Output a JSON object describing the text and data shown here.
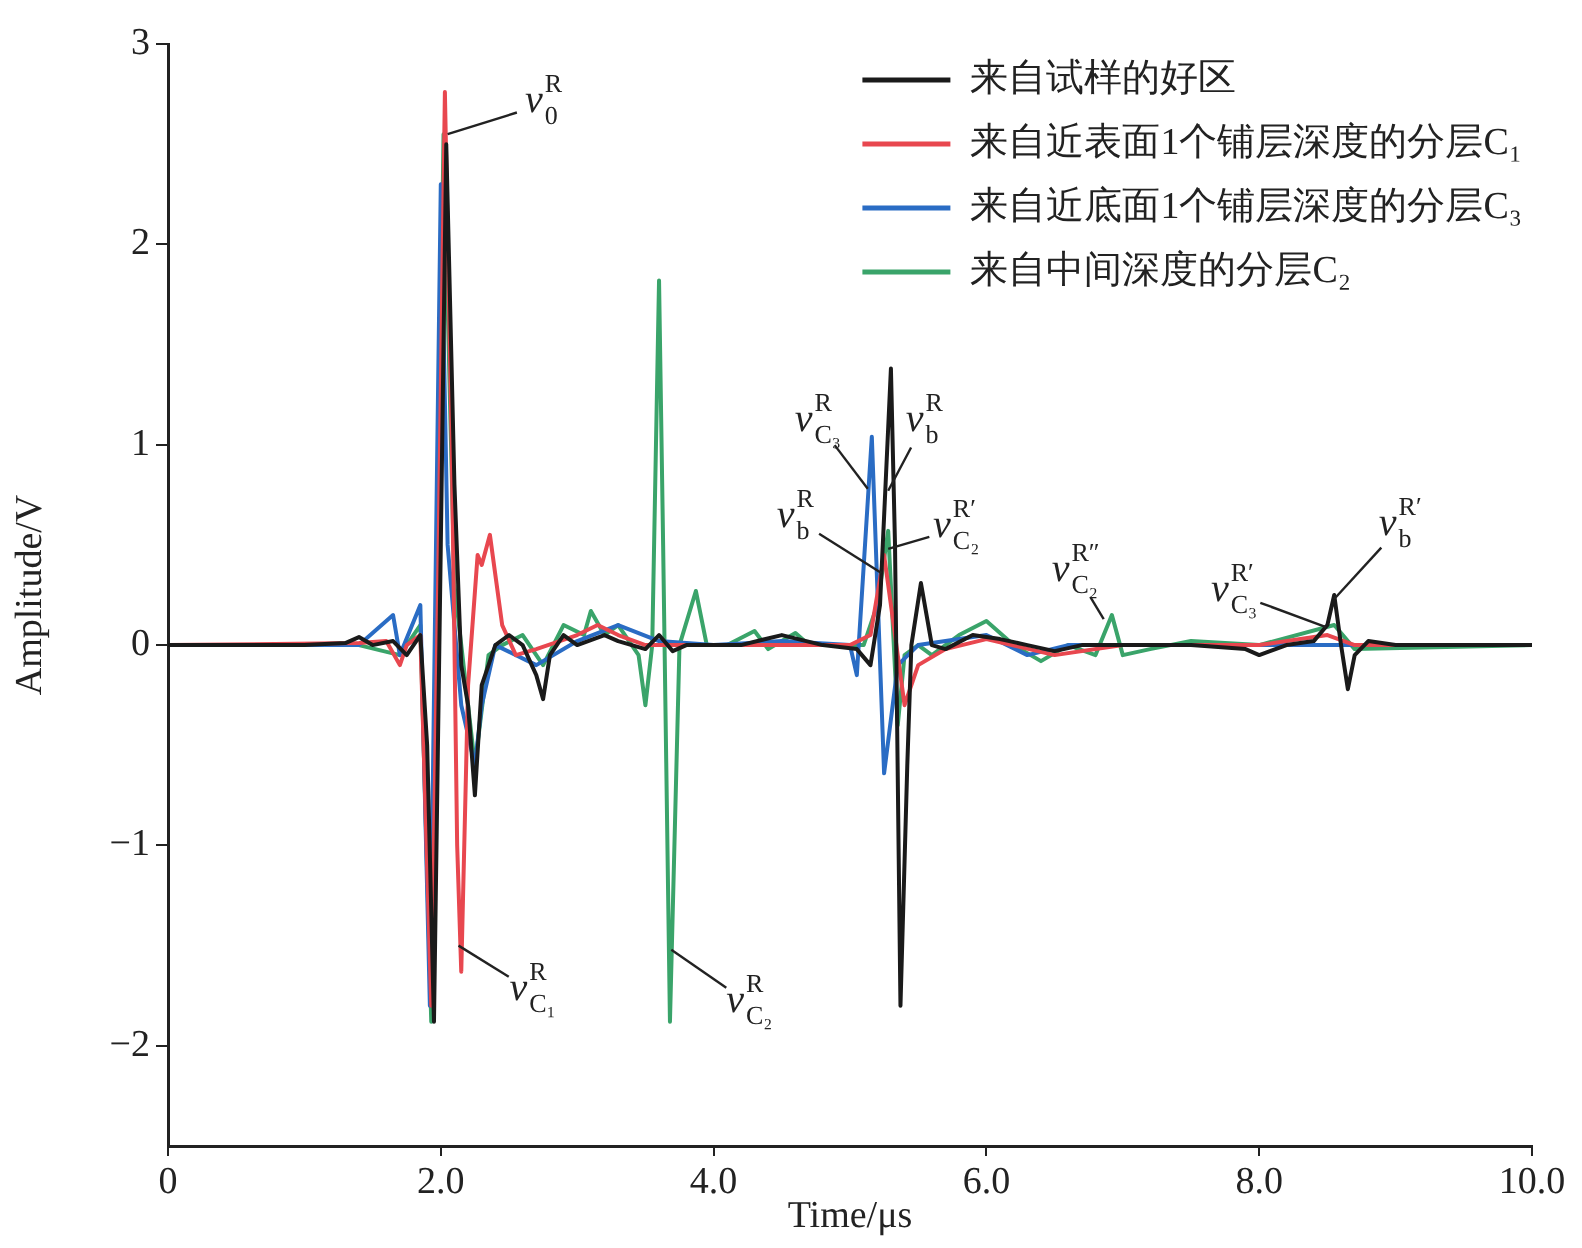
{
  "chart_data": {
    "type": "line",
    "xlabel": "Time/μs",
    "ylabel": "Amplitude/V",
    "xlim": [
      0,
      10
    ],
    "ylim": [
      -2.5,
      3
    ],
    "xticks": [
      0,
      {
        "value": 2,
        "label": "2.0"
      },
      {
        "value": 4,
        "label": "4.0"
      },
      {
        "value": 6,
        "label": "6.0"
      },
      {
        "value": 8,
        "label": "8.0"
      },
      {
        "value": 10,
        "label": "10.0"
      }
    ],
    "yticks": [
      -2,
      -1,
      0,
      1,
      2,
      3
    ],
    "grid": false,
    "legend": "top right",
    "marker": "none",
    "line_style": "solid",
    "series": [
      {
        "name": "来自试样的好区",
        "color": "#1a1a1a",
        "x": [
          0,
          1,
          1.3,
          1.4,
          1.5,
          1.65,
          1.75,
          1.85,
          1.9,
          1.95,
          2,
          2.04,
          2.1,
          2.15,
          2.2,
          2.25,
          2.3,
          2.4,
          2.5,
          2.6,
          2.7,
          2.75,
          2.8,
          2.9,
          3,
          3.2,
          3.3,
          3.5,
          3.6,
          3.7,
          3.8,
          4.2,
          4.5,
          4.8,
          5.05,
          5.15,
          5.22,
          5.3,
          5.33,
          5.37,
          5.42,
          5.45,
          5.52,
          5.6,
          5.7,
          5.9,
          6.1,
          6.3,
          6.5,
          6.7,
          7,
          7.5,
          7.9,
          8,
          8.2,
          8.4,
          8.5,
          8.55,
          8.6,
          8.65,
          8.7,
          8.8,
          9,
          10
        ],
        "values": [
          0,
          0,
          0.01,
          0.04,
          0,
          0.02,
          -0.05,
          0.05,
          -0.5,
          -1.88,
          0.5,
          2.5,
          0.8,
          -0.1,
          -0.3,
          -0.75,
          -0.2,
          0,
          0.05,
          0,
          -0.15,
          -0.27,
          -0.05,
          0.05,
          0,
          0.05,
          0.02,
          -0.02,
          0.05,
          -0.03,
          0,
          0,
          0.05,
          0,
          -0.02,
          -0.1,
          0.2,
          1.38,
          0.5,
          -1.8,
          -0.6,
          0,
          0.31,
          0,
          -0.02,
          0.05,
          0.03,
          0,
          -0.03,
          0,
          0,
          0,
          -0.02,
          -0.05,
          0,
          0.02,
          0.1,
          0.25,
          0,
          -0.22,
          -0.05,
          0.02,
          0,
          0
        ]
      },
      {
        "name": "来自近表面1个铺层深度的分层C₁",
        "color": "#e8474f",
        "x": [
          0,
          1.4,
          1.6,
          1.7,
          1.75,
          1.85,
          1.93,
          1.98,
          2.03,
          2.08,
          2.12,
          2.15,
          2.2,
          2.27,
          2.3,
          2.36,
          2.45,
          2.55,
          2.7,
          3,
          3.15,
          3.3,
          3.5,
          4,
          4.5,
          5,
          5.15,
          5.25,
          5.32,
          5.4,
          5.5,
          5.7,
          6,
          6.5,
          7,
          8,
          8.5,
          8.7,
          10
        ],
        "values": [
          0,
          0.01,
          0.02,
          -0.1,
          0,
          0.05,
          -1.8,
          0.3,
          2.76,
          1,
          -1,
          -1.63,
          -0.2,
          0.45,
          0.4,
          0.55,
          0.1,
          -0.05,
          -0.02,
          0.05,
          0.1,
          0.05,
          0,
          0,
          0,
          0,
          0.05,
          0.45,
          0.1,
          -0.3,
          -0.1,
          -0.02,
          0.03,
          -0.05,
          0,
          0,
          0.05,
          0,
          0
        ]
      },
      {
        "name": "来自近底面1个铺层深度的分层C₃",
        "color": "#2a6cc4",
        "x": [
          0,
          1.4,
          1.65,
          1.7,
          1.85,
          1.92,
          2,
          2.05,
          2.15,
          2.25,
          2.3,
          2.4,
          2.7,
          3,
          3.3,
          3.6,
          4,
          4.5,
          5,
          5.05,
          5.16,
          5.25,
          5.35,
          5.5,
          6,
          6.3,
          6.6,
          10
        ],
        "values": [
          0,
          0,
          0.15,
          -0.05,
          0.2,
          -1.8,
          2.3,
          0.5,
          -0.3,
          -0.6,
          -0.3,
          0,
          -0.1,
          0.02,
          0.1,
          0.02,
          0,
          0.02,
          0,
          -0.15,
          1.04,
          -0.64,
          -0.1,
          0,
          0.05,
          -0.05,
          0,
          0
        ]
      },
      {
        "name": "来自中间深度的分层C₂",
        "color": "#3aa46a",
        "x": [
          0,
          1.4,
          1.7,
          1.85,
          1.93,
          2.02,
          2.1,
          2.2,
          2.25,
          2.35,
          2.45,
          2.6,
          2.75,
          2.9,
          3.05,
          3.1,
          3.2,
          3.3,
          3.45,
          3.5,
          3.55,
          3.6,
          3.63,
          3.68,
          3.75,
          3.87,
          3.95,
          4.1,
          4.3,
          4.4,
          4.6,
          4.7,
          4.9,
          5.1,
          5.2,
          5.28,
          5.35,
          5.4,
          5.5,
          5.6,
          5.8,
          6,
          6.2,
          6.4,
          6.6,
          6.8,
          6.92,
          7,
          7.2,
          7.5,
          8,
          8.55,
          8.7,
          10
        ],
        "values": [
          0,
          0,
          -0.05,
          0.1,
          -1.88,
          2.55,
          0.3,
          -0.3,
          -0.6,
          -0.05,
          0,
          0.05,
          -0.1,
          0.1,
          0.05,
          0.17,
          0.05,
          0.1,
          -0.05,
          -0.3,
          0,
          1.82,
          0.5,
          -1.88,
          0,
          0.27,
          0,
          0,
          0.07,
          -0.02,
          0.06,
          0,
          0,
          0,
          0.2,
          0.57,
          -0.4,
          -0.05,
          0,
          -0.05,
          0.05,
          0.12,
          0,
          -0.08,
          0,
          -0.05,
          0.15,
          -0.05,
          -0.02,
          0.02,
          0,
          0.1,
          -0.02,
          0
        ]
      }
    ],
    "annotations": [
      {
        "text": "v$^{R}$$_{0}$",
        "x": 2.05,
        "y": 2.55
      },
      {
        "text": "v$^{R}$$_{C₁}$",
        "x": 2.13,
        "y": -1.5
      },
      {
        "text": "v$^{R}$$_{C₂}$",
        "x": 3.69,
        "y": -1.52
      },
      {
        "text": "v$^{R}$$_{C₃}$",
        "x": 5.13,
        "y": 0.78
      },
      {
        "text": "v$^{R}$$_{b}$",
        "x": 5.28,
        "y": 0.77
      },
      {
        "text": "v$^{R}$$_{b}$",
        "x": 5.23,
        "y": 0.36
      },
      {
        "text": "v$^{R′}$$_{C₂}$",
        "x": 5.28,
        "y": 0.48
      },
      {
        "text": "v$^{R″}$$_{C₂}$",
        "x": 6.86,
        "y": 0.13
      },
      {
        "text": "v$^{R′}$$_{C₃}$",
        "x": 8.49,
        "y": 0.09
      },
      {
        "text": "v$^{R′}$$_{b}$",
        "x": 8.55,
        "y": 0.23
      }
    ]
  }
}
